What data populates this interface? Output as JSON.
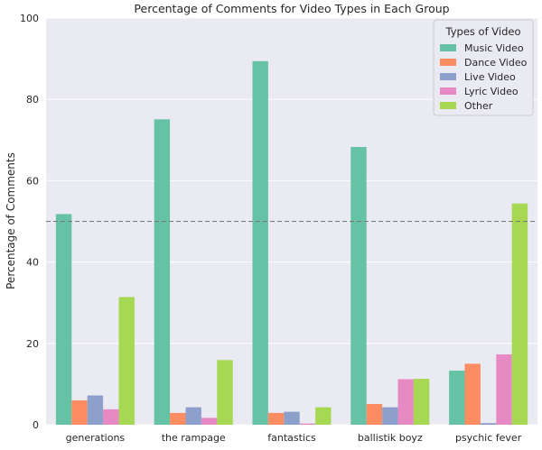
{
  "chart_data": {
    "type": "bar",
    "title": "Percentage of Comments for Video Types in Each Group",
    "xlabel": "",
    "ylabel": "Percentage of Comments",
    "ylim": [
      0,
      100
    ],
    "yticks": [
      0,
      20,
      40,
      60,
      80,
      100
    ],
    "grid": true,
    "reference_line": 50,
    "categories": [
      "generations",
      "the rampage",
      "fantastics",
      "ballistik boyz",
      "psychic fever"
    ],
    "legend": {
      "title": "Types of Video",
      "placement": "top-right"
    },
    "series": [
      {
        "name": "Music Video",
        "color": "#66c2a5",
        "values": [
          51.8,
          75.1,
          89.4,
          68.3,
          13.3
        ]
      },
      {
        "name": "Dance Video",
        "color": "#fc8d62",
        "values": [
          6.0,
          2.9,
          2.9,
          5.1,
          15.0
        ]
      },
      {
        "name": "Live Video",
        "color": "#8da0cb",
        "values": [
          7.2,
          4.3,
          3.2,
          4.3,
          0.4
        ]
      },
      {
        "name": "Lyric Video",
        "color": "#e78ac3",
        "values": [
          3.8,
          1.7,
          0.3,
          11.2,
          17.3
        ]
      },
      {
        "name": "Other",
        "color": "#a6d854",
        "values": [
          31.4,
          15.9,
          4.3,
          11.3,
          54.4
        ]
      }
    ]
  }
}
